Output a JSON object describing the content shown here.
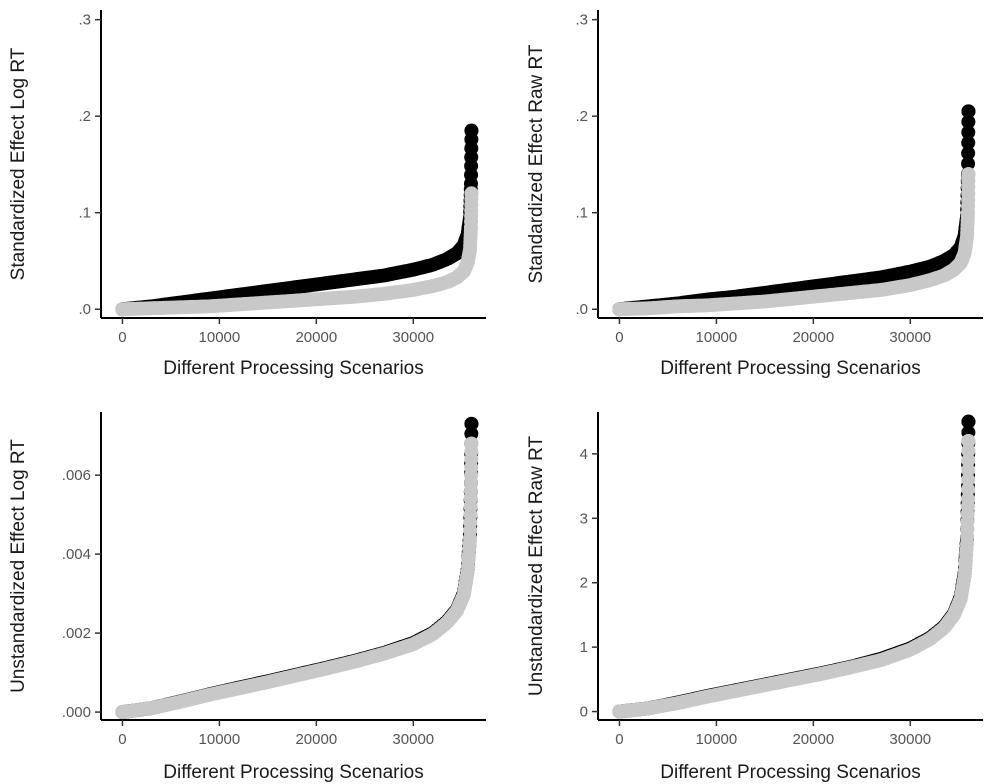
{
  "chart_data": [
    {
      "type": "scatter",
      "panel": "top-left",
      "title": "",
      "xlabel": "Different Processing Scenarios",
      "ylabel": "Standardized Effect Log RT",
      "xlim": [
        -1800,
        37500
      ],
      "ylim": [
        -0.007,
        0.31
      ],
      "xticks": [
        0,
        10000,
        20000,
        30000
      ],
      "xtick_labels": [
        "0",
        "10000",
        "20000",
        "30000"
      ],
      "yticks": [
        0,
        0.1,
        0.2,
        0.3
      ],
      "ytick_labels": [
        ".0",
        ".1",
        ".2",
        ".3"
      ],
      "grid": false,
      "series": [
        {
          "color": "#000000",
          "x": [
            0,
            3000,
            6000,
            9000,
            12000,
            15000,
            18000,
            21000,
            24000,
            27000,
            30000,
            32000,
            33500,
            34500,
            35200,
            35600,
            35850,
            35950,
            36000
          ],
          "y": [
            0,
            0.003,
            0.007,
            0.011,
            0.015,
            0.019,
            0.023,
            0.027,
            0.031,
            0.035,
            0.041,
            0.046,
            0.052,
            0.058,
            0.066,
            0.077,
            0.095,
            0.13,
            0.185
          ]
        },
        {
          "color": "#c8c8c8",
          "x": [
            0,
            3000,
            6000,
            9000,
            12000,
            15000,
            18000,
            21000,
            24000,
            27000,
            30000,
            32000,
            33500,
            34500,
            35200,
            35600,
            35850,
            35950,
            36000
          ],
          "y": [
            0,
            0.001,
            0.002,
            0.003,
            0.005,
            0.007,
            0.009,
            0.011,
            0.013,
            0.016,
            0.02,
            0.024,
            0.028,
            0.033,
            0.039,
            0.048,
            0.062,
            0.085,
            0.12
          ]
        }
      ]
    },
    {
      "type": "scatter",
      "panel": "top-right",
      "title": "",
      "xlabel": "Different Processing Scenarios",
      "ylabel": "Standardized Effect Raw RT",
      "xlim": [
        -1800,
        37500
      ],
      "ylim": [
        -0.007,
        0.31
      ],
      "xticks": [
        0,
        10000,
        20000,
        30000
      ],
      "xtick_labels": [
        "0",
        "10000",
        "20000",
        "30000"
      ],
      "yticks": [
        0,
        0.1,
        0.2,
        0.3
      ],
      "ytick_labels": [
        ".0",
        ".1",
        ".2",
        ".3"
      ],
      "grid": false,
      "series": [
        {
          "color": "#000000",
          "x": [
            0,
            3000,
            6000,
            9000,
            12000,
            15000,
            18000,
            21000,
            24000,
            27000,
            30000,
            32000,
            33500,
            34500,
            35200,
            35600,
            35850,
            35950,
            36000
          ],
          "y": [
            0,
            0.003,
            0.006,
            0.01,
            0.013,
            0.017,
            0.021,
            0.025,
            0.029,
            0.033,
            0.039,
            0.044,
            0.05,
            0.056,
            0.064,
            0.076,
            0.096,
            0.14,
            0.205
          ]
        },
        {
          "color": "#c8c8c8",
          "x": [
            0,
            3000,
            6000,
            9000,
            12000,
            15000,
            18000,
            21000,
            24000,
            27000,
            30000,
            32000,
            33500,
            34500,
            35200,
            35600,
            35850,
            35950,
            36000
          ],
          "y": [
            0,
            0.001,
            0.003,
            0.004,
            0.006,
            0.008,
            0.011,
            0.014,
            0.017,
            0.02,
            0.025,
            0.03,
            0.035,
            0.041,
            0.048,
            0.058,
            0.075,
            0.1,
            0.14
          ]
        }
      ]
    },
    {
      "type": "scatter",
      "panel": "bottom-left",
      "title": "",
      "xlabel": "Different Processing Scenarios",
      "ylabel": "Unstandardized Effect Log RT",
      "xlim": [
        -1800,
        37500
      ],
      "ylim": [
        -0.00015,
        0.0076
      ],
      "xticks": [
        0,
        10000,
        20000,
        30000
      ],
      "xtick_labels": [
        "0",
        "10000",
        "20000",
        "30000"
      ],
      "yticks": [
        0,
        0.002,
        0.004,
        0.006
      ],
      "ytick_labels": [
        ".000",
        ".002",
        ".004",
        ".006"
      ],
      "grid": false,
      "series": [
        {
          "color": "#000000",
          "x": [
            0,
            3000,
            6000,
            9000,
            12000,
            15000,
            18000,
            21000,
            24000,
            27000,
            30000,
            32000,
            33500,
            34500,
            35200,
            35600,
            35850,
            35950,
            36000
          ],
          "y": [
            0,
            0.0001,
            0.00027,
            0.00045,
            0.00062,
            0.00078,
            0.00095,
            0.00112,
            0.0013,
            0.0015,
            0.00175,
            0.002,
            0.0023,
            0.0026,
            0.003,
            0.0036,
            0.0045,
            0.0058,
            0.0073
          ]
        },
        {
          "color": "#c8c8c8",
          "x": [
            0,
            3000,
            6000,
            9000,
            12000,
            15000,
            18000,
            21000,
            24000,
            27000,
            30000,
            32000,
            33500,
            34500,
            35200,
            35600,
            35850,
            35950,
            36000
          ],
          "y": [
            0,
            0.0001,
            0.00026,
            0.00044,
            0.0006,
            0.00076,
            0.00093,
            0.0011,
            0.00128,
            0.00148,
            0.00172,
            0.00197,
            0.00227,
            0.00257,
            0.00296,
            0.00355,
            0.0044,
            0.0056,
            0.0068
          ]
        }
      ]
    },
    {
      "type": "scatter",
      "panel": "bottom-right",
      "title": "",
      "xlabel": "Different Processing Scenarios",
      "ylabel": "Unstandardized Effect Raw RT",
      "xlim": [
        -1800,
        37500
      ],
      "ylim": [
        -0.1,
        4.65
      ],
      "xticks": [
        0,
        10000,
        20000,
        30000
      ],
      "xtick_labels": [
        "0",
        "10000",
        "20000",
        "30000"
      ],
      "yticks": [
        0,
        1,
        2,
        3,
        4
      ],
      "ytick_labels": [
        "0",
        "1",
        "2",
        "3",
        "4"
      ],
      "grid": false,
      "series": [
        {
          "color": "#000000",
          "x": [
            0,
            3000,
            6000,
            9000,
            12000,
            15000,
            18000,
            21000,
            24000,
            27000,
            30000,
            32000,
            33500,
            34500,
            35200,
            35600,
            35850,
            35950,
            36000
          ],
          "y": [
            0,
            0.05,
            0.14,
            0.24,
            0.33,
            0.42,
            0.51,
            0.6,
            0.7,
            0.82,
            0.98,
            1.14,
            1.32,
            1.52,
            1.78,
            2.15,
            2.7,
            3.5,
            4.5
          ]
        },
        {
          "color": "#c8c8c8",
          "x": [
            0,
            3000,
            6000,
            9000,
            12000,
            15000,
            18000,
            21000,
            24000,
            27000,
            30000,
            32000,
            33500,
            34500,
            35200,
            35600,
            35850,
            35950,
            36000
          ],
          "y": [
            0,
            0.05,
            0.13,
            0.23,
            0.32,
            0.41,
            0.5,
            0.59,
            0.69,
            0.8,
            0.96,
            1.12,
            1.3,
            1.5,
            1.75,
            2.1,
            2.6,
            3.3,
            4.2
          ]
        }
      ]
    }
  ]
}
